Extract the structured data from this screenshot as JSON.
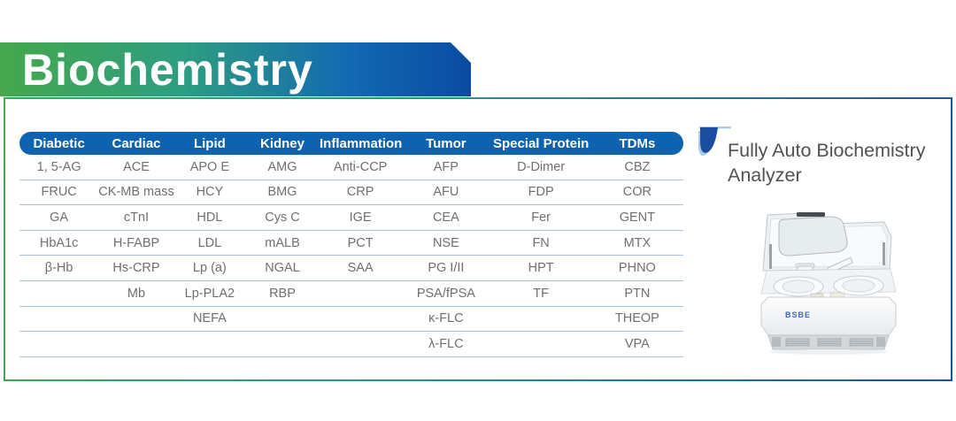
{
  "banner": {
    "title": "Biochemistry"
  },
  "table": {
    "headers": [
      "Diabetic",
      "Cardiac",
      "Lipid",
      "Kidney",
      "Inflammation",
      "Tumor",
      "Special Protein",
      "TDMs"
    ],
    "rows": [
      [
        "1, 5-AG",
        "ACE",
        "APO E",
        "AMG",
        "Anti-CCP",
        "AFP",
        "D-Dimer",
        "CBZ"
      ],
      [
        "FRUC",
        "CK-MB mass",
        "HCY",
        "BMG",
        "CRP",
        "AFU",
        "FDP",
        "COR"
      ],
      [
        "GA",
        "cTnI",
        "HDL",
        "Cys C",
        "IGE",
        "CEA",
        "Fer",
        "GENT"
      ],
      [
        "HbA1c",
        "H-FABP",
        "LDL",
        "mALB",
        "PCT",
        "NSE",
        "FN",
        "MTX"
      ],
      [
        "β-Hb",
        "Hs-CRP",
        "Lp (a)",
        "NGAL",
        "SAA",
        "PG I/II",
        "HPT",
        "PHNO"
      ],
      [
        "",
        "Mb",
        "Lp-PLA2",
        "RBP",
        "",
        "PSA/fPSA",
        "TF",
        "PTN"
      ],
      [
        "",
        "",
        "NEFA",
        "",
        "",
        "κ-FLC",
        "",
        "THEOP"
      ],
      [
        "",
        "",
        "",
        "",
        "",
        "λ-FLC",
        "",
        "VPA"
      ]
    ]
  },
  "panel": {
    "title": "Fully Auto Biochemistry Analyzer",
    "device_brand": "BSBE"
  },
  "colors": {
    "banner_green": "#45a84c",
    "banner_blue": "#0a4ba1",
    "header_bar": "#0e63b1",
    "divider": "#a5c2de",
    "icon_dark": "#1a4c9f",
    "icon_light": "#a9cce9"
  }
}
